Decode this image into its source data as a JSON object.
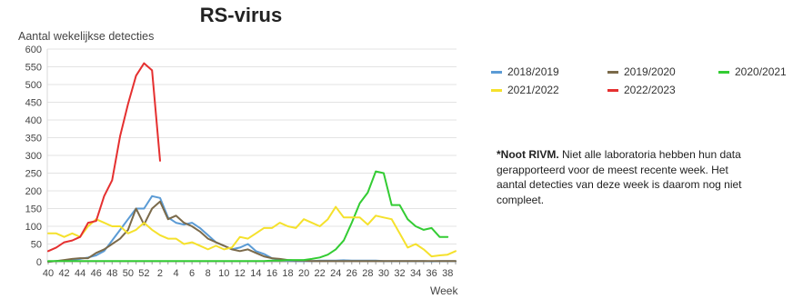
{
  "chart_data": {
    "type": "line",
    "title": "RS-virus",
    "ylabel": "Aantal wekelijkse detecties",
    "xlabel": "Week",
    "ylim": [
      0,
      600
    ],
    "yticks": [
      0,
      50,
      100,
      150,
      200,
      250,
      300,
      350,
      400,
      450,
      500,
      550,
      600
    ],
    "x_tick_labels": [
      "40",
      "42",
      "44",
      "46",
      "48",
      "50",
      "52",
      "2",
      "4",
      "6",
      "8",
      "10",
      "12",
      "14",
      "16",
      "18",
      "20",
      "22",
      "24",
      "26",
      "28",
      "30",
      "32",
      "34",
      "36",
      "38"
    ],
    "x": [
      "40",
      "41",
      "42",
      "43",
      "44",
      "45",
      "46",
      "47",
      "48",
      "49",
      "50",
      "51",
      "52",
      "1",
      "2",
      "3",
      "4",
      "5",
      "6",
      "7",
      "8",
      "9",
      "10",
      "11",
      "12",
      "13",
      "14",
      "15",
      "16",
      "17",
      "18",
      "19",
      "20",
      "21",
      "22",
      "23",
      "24",
      "25",
      "26",
      "27",
      "28",
      "29",
      "30",
      "31",
      "32",
      "33",
      "34",
      "35",
      "36",
      "37",
      "38",
      "39"
    ],
    "grid": true,
    "legend_position": "right",
    "series": [
      {
        "name": "2018/2019",
        "color": "#5b9bd5",
        "values": [
          0,
          2,
          3,
          5,
          8,
          12,
          18,
          30,
          60,
          90,
          120,
          150,
          150,
          185,
          180,
          125,
          110,
          105,
          110,
          95,
          75,
          55,
          45,
          35,
          40,
          50,
          30,
          22,
          10,
          5,
          3,
          2,
          2,
          2,
          3,
          3,
          3,
          4,
          3,
          3,
          3,
          3,
          2,
          2,
          2,
          2,
          2,
          2,
          1,
          2,
          2,
          2
        ]
      },
      {
        "name": "2019/2020",
        "color": "#7b6a4a",
        "values": [
          0,
          2,
          5,
          8,
          10,
          10,
          25,
          35,
          50,
          65,
          90,
          150,
          105,
          150,
          170,
          120,
          130,
          110,
          100,
          85,
          65,
          55,
          45,
          35,
          30,
          35,
          25,
          15,
          10,
          8,
          5,
          3,
          3,
          2,
          2,
          2,
          2,
          2,
          2,
          2,
          2,
          2,
          2,
          2,
          2,
          2,
          2,
          2,
          2,
          2,
          2,
          2
        ]
      },
      {
        "name": "2020/2021",
        "color": "#33cc33",
        "values": [
          2,
          2,
          2,
          2,
          2,
          2,
          2,
          2,
          2,
          2,
          2,
          2,
          2,
          2,
          2,
          2,
          2,
          2,
          2,
          2,
          2,
          2,
          2,
          2,
          2,
          2,
          2,
          2,
          3,
          3,
          5,
          5,
          5,
          8,
          12,
          20,
          35,
          60,
          110,
          165,
          195,
          255,
          250,
          160,
          160,
          120,
          100,
          90,
          95,
          70,
          70,
          null
        ]
      },
      {
        "name": "2021/2022",
        "color": "#f5e12c",
        "values": [
          80,
          80,
          70,
          80,
          70,
          100,
          120,
          110,
          100,
          100,
          80,
          90,
          110,
          90,
          75,
          65,
          65,
          50,
          55,
          45,
          35,
          45,
          35,
          40,
          70,
          65,
          80,
          95,
          95,
          110,
          100,
          95,
          120,
          110,
          100,
          120,
          155,
          125,
          125,
          125,
          105,
          130,
          125,
          120,
          80,
          40,
          50,
          35,
          15,
          18,
          20,
          30
        ]
      },
      {
        "name": "2022/2023",
        "color": "#e53030",
        "values": [
          30,
          40,
          55,
          60,
          70,
          110,
          115,
          185,
          230,
          355,
          445,
          525,
          560,
          540,
          285,
          null,
          null,
          null,
          null,
          null,
          null,
          null,
          null,
          null,
          null,
          null,
          null,
          null,
          null,
          null,
          null,
          null,
          null,
          null,
          null,
          null,
          null,
          null,
          null,
          null,
          null,
          null,
          null,
          null,
          null,
          null,
          null,
          null,
          null,
          null,
          null,
          null
        ]
      }
    ]
  },
  "note": {
    "lead": "*Noot RIVM.",
    "text": " Niet alle laboratoria hebben hun data gerapporteerd voor de meest recente week. Het aantal detecties van deze week is daarom nog niet compleet."
  }
}
